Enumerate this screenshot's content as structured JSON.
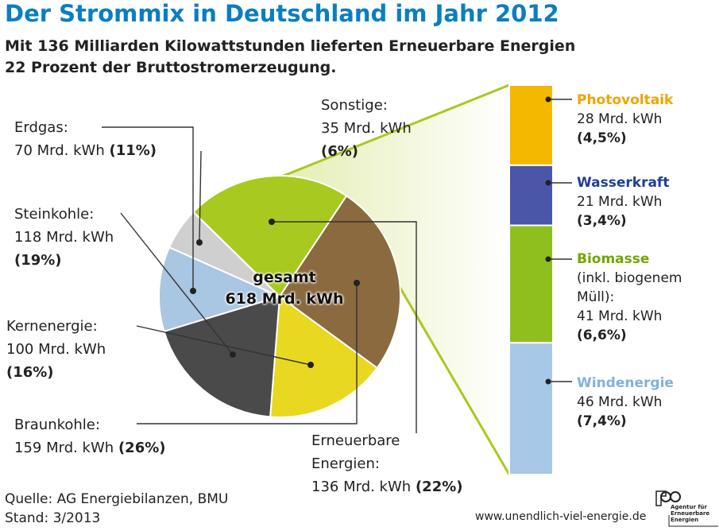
{
  "title": "Der Strommix in Deutschland im Jahr 2012",
  "subtitle_line1": "Mit 136 Milliarden Kilowattstunden lieferten Erneuerbare Energien",
  "subtitle_line2": "22 Prozent der Bruttostromerzeugung.",
  "center_line1": "gesamt",
  "center_line2": "618 Mrd. kWh",
  "source_line1": "Quelle: AG Energiebilanzen, BMU",
  "source_line2": "Stand: 3/2013",
  "website": "www.unendlich-viel-energie.de",
  "logo_text": "Agentur für Erneuerbare Energien",
  "chart_data": {
    "type": "pie",
    "total": 618,
    "unit": "Mrd. kWh",
    "slices": [
      {
        "name": "Sonstige:",
        "value": 35,
        "value_text": "35 Mrd. kWh",
        "percent_text": "(6%)",
        "color": "#cfcfcf"
      },
      {
        "name": "Erneuerbare Energien:",
        "value": 136,
        "value_text": "136 Mrd. kWh",
        "percent_text": "(22%)",
        "color": "#a8c920"
      },
      {
        "name": "Braunkohle:",
        "value": 159,
        "value_text": "159 Mrd. kWh",
        "percent_text": "(26%)",
        "color": "#8a6a3e"
      },
      {
        "name": "Kernenergie:",
        "value": 100,
        "value_text": "100 Mrd. kWh",
        "percent_text": "(16%)",
        "color": "#e8d820"
      },
      {
        "name": "Steinkohle:",
        "value": 118,
        "value_text": "118 Mrd. kWh",
        "percent_text": "(19%)",
        "color": "#4a4a4a"
      },
      {
        "name": "Erdgas:",
        "value": 70,
        "value_text": "70 Mrd. kWh",
        "percent_text": "(11%)",
        "color": "#a9c6e2"
      }
    ],
    "breakdown": {
      "of": "Erneuerbare Energien:",
      "segments": [
        {
          "name": "Photovoltaik",
          "value": 28,
          "value_text": "28 Mrd. kWh",
          "percent_text": "(4,5%)",
          "color": "#f4b800",
          "label_color": "#f0a400"
        },
        {
          "name": "Wasserkraft",
          "value": 21,
          "value_text": "21 Mrd. kWh",
          "percent_text": "(3,4%)",
          "color": "#4a56a8",
          "label_color": "#1f3f94"
        },
        {
          "name": "Biomasse",
          "value": 41,
          "value_text": "41 Mrd. kWh",
          "percent_text": "(6,6%)",
          "color": "#8fbf1e",
          "label_color": "#6fa800",
          "note_line1": "(inkl. biogenem",
          "note_line2": "Müll):"
        },
        {
          "name": "Windenergie",
          "value": 46,
          "value_text": "46 Mrd. kWh",
          "percent_text": "(7,4%)",
          "color": "#a8c8e8",
          "label_color": "#7fb2e0"
        }
      ]
    }
  }
}
